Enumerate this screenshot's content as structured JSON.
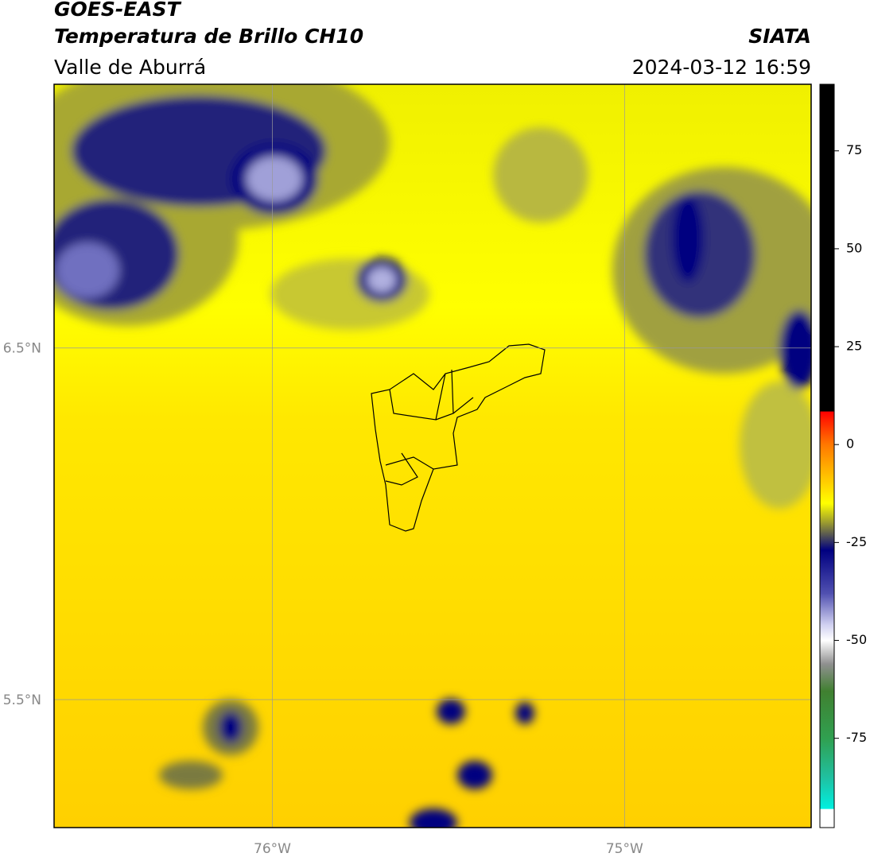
{
  "header": {
    "title": "GOES-EAST",
    "subtitle": "Temperatura de Brillo CH10",
    "region": "Valle de Aburrá",
    "source": "SIATA",
    "datetime": "2024-03-12 16:59"
  },
  "map": {
    "xlim": [
      -76.62,
      -74.47
    ],
    "ylim": [
      5.136,
      7.25
    ],
    "xticks": [
      {
        "value": -76,
        "label": "76°W"
      },
      {
        "value": -75,
        "label": "75°W"
      }
    ],
    "yticks": [
      {
        "value": 6.5,
        "label": "6.5°N"
      },
      {
        "value": 5.5,
        "label": "5.5°N"
      }
    ],
    "grid": true
  },
  "colorbar": {
    "lim": [
      -97.8,
      92
    ],
    "ticks": [
      -75,
      -50,
      -25,
      0,
      25,
      50,
      75
    ],
    "stops": [
      {
        "value": 92,
        "color": "#000000"
      },
      {
        "value": 8.5,
        "color": "#000000"
      },
      {
        "value": 8.4,
        "color": "#ff0000"
      },
      {
        "value": 0,
        "color": "#ff7800"
      },
      {
        "value": -10,
        "color": "#ffd200"
      },
      {
        "value": -15,
        "color": "#ffff00"
      },
      {
        "value": -20,
        "color": "#9a9a30"
      },
      {
        "value": -27,
        "color": "#000080"
      },
      {
        "value": -38,
        "color": "#5050b0"
      },
      {
        "value": -46,
        "color": "#d0d0f0"
      },
      {
        "value": -50,
        "color": "#ffffff"
      },
      {
        "value": -56,
        "color": "#909090"
      },
      {
        "value": -63,
        "color": "#408030"
      },
      {
        "value": -75,
        "color": "#30a050"
      },
      {
        "value": -85,
        "color": "#20c0a0"
      },
      {
        "value": -93,
        "color": "#00f0e0"
      },
      {
        "value": -93.1,
        "color": "#ffffff"
      },
      {
        "value": -97.8,
        "color": "#ffffff"
      }
    ]
  }
}
